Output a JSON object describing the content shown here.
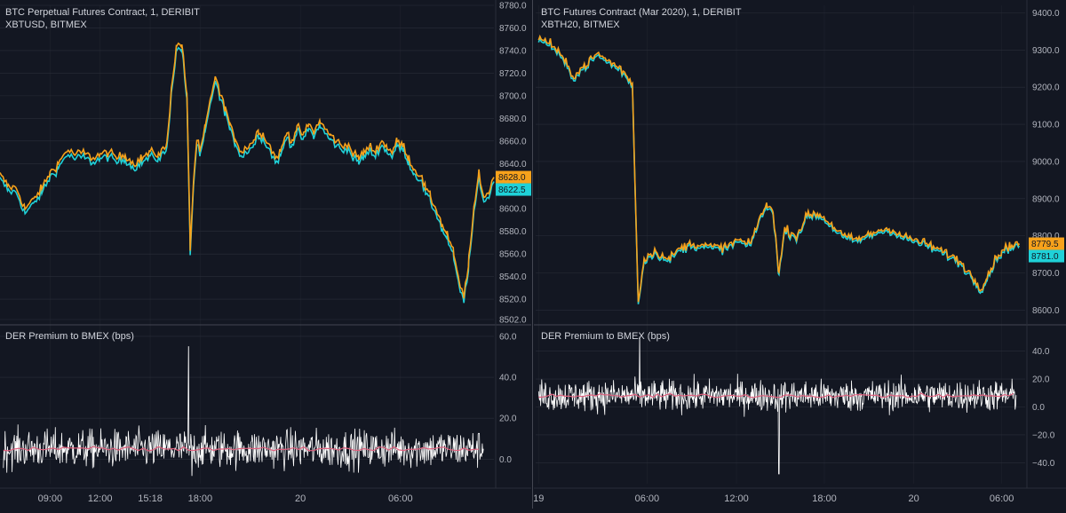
{
  "colors": {
    "background": "#131722",
    "grid": "#2a2e39",
    "der_line": "#f7a21b",
    "bmex_line": "#1fd1d8",
    "premium_line": "#ffffff",
    "premium_avg": "#e0607e"
  },
  "chart_data": [
    {
      "type": "line",
      "title": "BTC Perpetual Futures Contract, 1, DERIBIT",
      "subtitle": "XBTUSD, BITMEX",
      "ylim": [
        8502,
        8780
      ],
      "yticks": [
        "8780.0",
        "8760.0",
        "8740.0",
        "8720.0",
        "8700.0",
        "8680.0",
        "8660.0",
        "8640.0",
        "8620.0",
        "8600.0",
        "8580.0",
        "8560.0",
        "8540.0",
        "8520.0",
        "8502.0"
      ],
      "series": [
        {
          "name": "DERIBIT",
          "color": "#f7a21b",
          "last": "8628.0",
          "anchors": [
            [
              0,
              8630
            ],
            [
              0.5,
              8620
            ],
            [
              1,
              8618
            ],
            [
              1.5,
              8600
            ],
            [
              2,
              8608
            ],
            [
              2.5,
              8618
            ],
            [
              3,
              8632
            ],
            [
              3.5,
              8640
            ],
            [
              4,
              8652
            ],
            [
              4.5,
              8648
            ],
            [
              5,
              8650
            ],
            [
              5.5,
              8645
            ],
            [
              6,
              8648
            ],
            [
              6.5,
              8650
            ],
            [
              7,
              8645
            ],
            [
              7.5,
              8648
            ],
            [
              8,
              8640
            ],
            [
              8.5,
              8645
            ],
            [
              9,
              8650
            ],
            [
              9.5,
              8648
            ],
            [
              10,
              8656
            ],
            [
              10.3,
              8712
            ],
            [
              10.6,
              8745
            ],
            [
              10.9,
              8746
            ],
            [
              11.2,
              8700
            ],
            [
              11.4,
              8565
            ],
            [
              11.6,
              8625
            ],
            [
              11.8,
              8662
            ],
            [
              12,
              8650
            ],
            [
              12.3,
              8672
            ],
            [
              12.6,
              8695
            ],
            [
              12.9,
              8718
            ],
            [
              13.2,
              8700
            ],
            [
              13.5,
              8690
            ],
            [
              13.8,
              8672
            ],
            [
              14.1,
              8662
            ],
            [
              14.5,
              8650
            ],
            [
              14.8,
              8655
            ],
            [
              15.2,
              8660
            ],
            [
              15.5,
              8670
            ],
            [
              15.8,
              8665
            ],
            [
              16.2,
              8655
            ],
            [
              16.5,
              8645
            ],
            [
              16.8,
              8650
            ],
            [
              17.2,
              8668
            ],
            [
              17.5,
              8660
            ],
            [
              17.8,
              8672
            ],
            [
              18.2,
              8665
            ],
            [
              18.5,
              8675
            ],
            [
              18.8,
              8668
            ],
            [
              19.2,
              8678
            ],
            [
              19.5,
              8670
            ],
            [
              19.8,
              8665
            ],
            [
              20.2,
              8660
            ],
            [
              20.5,
              8655
            ],
            [
              20.8,
              8658
            ],
            [
              21.2,
              8648
            ],
            [
              21.5,
              8645
            ],
            [
              21.8,
              8650
            ],
            [
              22.2,
              8655
            ],
            [
              22.5,
              8650
            ],
            [
              22.8,
              8660
            ],
            [
              23.2,
              8655
            ],
            [
              23.5,
              8650
            ],
            [
              23.8,
              8660
            ],
            [
              24.2,
              8655
            ],
            [
              24.5,
              8645
            ],
            [
              24.8,
              8635
            ],
            [
              25.2,
              8630
            ],
            [
              25.5,
              8618
            ],
            [
              25.8,
              8610
            ],
            [
              26.2,
              8598
            ],
            [
              26.5,
              8585
            ],
            [
              26.8,
              8578
            ],
            [
              27.2,
              8560
            ],
            [
              27.5,
              8535
            ],
            [
              27.8,
              8522
            ],
            [
              28.1,
              8555
            ],
            [
              28.4,
              8598
            ],
            [
              28.7,
              8632
            ],
            [
              29,
              8610
            ],
            [
              29.3,
              8615
            ],
            [
              29.6,
              8628
            ]
          ]
        },
        {
          "name": "BITMEX",
          "color": "#1fd1d8",
          "last": "8622.5",
          "offset": -4
        }
      ],
      "x_ticks": [
        {
          "t": 3,
          "label": "09:00"
        },
        {
          "t": 6,
          "label": "12:00"
        },
        {
          "t": 9,
          "label": "15:18"
        },
        {
          "t": 12,
          "label": "18:00"
        },
        {
          "t": 18,
          "label": "20"
        },
        {
          "t": 24,
          "label": "06:00"
        }
      ],
      "x_range": [
        0,
        29.6
      ],
      "indicator": {
        "label": "DER Premium to BMEX (bps)",
        "ylim": [
          -12,
          63
        ],
        "yticks": [
          "60.0",
          "40.0",
          "20.0",
          "0.0"
        ],
        "ytick_values": [
          60,
          40,
          20,
          0
        ],
        "baseline": 5,
        "noise": 5,
        "spikes": [
          {
            "t": 11.3,
            "y": 55
          },
          {
            "t": 11.5,
            "y": -8
          }
        ]
      }
    },
    {
      "type": "line",
      "title": "BTC Futures Contract (Mar 2020), 1, DERIBIT",
      "subtitle": "XBTH20, BITMEX",
      "ylim": [
        8575,
        9420
      ],
      "yticks": [
        "9400.0",
        "9300.0",
        "9200.0",
        "9100.0",
        "9000.0",
        "8900.0",
        "8800.0",
        "8700.0",
        "8600.0"
      ],
      "ytick_values": [
        9400,
        9300,
        9200,
        9100,
        9000,
        8900,
        8800,
        8700,
        8600
      ],
      "series": [
        {
          "name": "DERIBIT",
          "color": "#f7a21b",
          "last": "8779.5",
          "anchors": [
            [
              0,
              9330
            ],
            [
              0.8,
              9320
            ],
            [
              1.6,
              9280
            ],
            [
              2.4,
              9230
            ],
            [
              3.2,
              9260
            ],
            [
              4,
              9290
            ],
            [
              4.8,
              9270
            ],
            [
              5.6,
              9250
            ],
            [
              6.4,
              9210
            ],
            [
              6.8,
              8620
            ],
            [
              7.2,
              8740
            ],
            [
              8,
              8760
            ],
            [
              8.8,
              8735
            ],
            [
              9.6,
              8765
            ],
            [
              10.4,
              8780
            ],
            [
              11.2,
              8775
            ],
            [
              12,
              8770
            ],
            [
              12.8,
              8770
            ],
            [
              13.6,
              8790
            ],
            [
              14.4,
              8775
            ],
            [
              15.2,
              8860
            ],
            [
              15.6,
              8880
            ],
            [
              16,
              8870
            ],
            [
              16.4,
              8700
            ],
            [
              16.8,
              8820
            ],
            [
              17.6,
              8800
            ],
            [
              18.4,
              8860
            ],
            [
              19.2,
              8858
            ],
            [
              20,
              8830
            ],
            [
              20.8,
              8800
            ],
            [
              21.6,
              8790
            ],
            [
              22.4,
              8800
            ],
            [
              23.2,
              8815
            ],
            [
              24,
              8820
            ],
            [
              24.8,
              8800
            ],
            [
              25.6,
              8790
            ],
            [
              26.4,
              8780
            ],
            [
              27.2,
              8765
            ],
            [
              28,
              8750
            ],
            [
              28.8,
              8730
            ],
            [
              29.6,
              8690
            ],
            [
              30.2,
              8660
            ],
            [
              30.6,
              8690
            ],
            [
              31.2,
              8740
            ],
            [
              31.6,
              8760
            ],
            [
              32.2,
              8775
            ],
            [
              32.8,
              8779
            ]
          ]
        },
        {
          "name": "BITMEX",
          "color": "#1fd1d8",
          "last": "8781.0",
          "offset": -6
        }
      ],
      "x_ticks": [
        {
          "t": 0,
          "label": "19"
        },
        {
          "t": 7.4,
          "label": "06:00"
        },
        {
          "t": 13.5,
          "label": "12:00"
        },
        {
          "t": 19.5,
          "label": "18:00"
        },
        {
          "t": 25.6,
          "label": "20"
        },
        {
          "t": 31.6,
          "label": "06:00"
        }
      ],
      "x_range": [
        -0.2,
        33.2
      ],
      "indicator": {
        "label": "DER Premium to BMEX (bps)",
        "ylim": [
          -55,
          55
        ],
        "yticks": [
          "40.0",
          "20.0",
          "0.0",
          "−20.0",
          "−40.0"
        ],
        "ytick_values": [
          40,
          20,
          0,
          -20,
          -40
        ],
        "baseline": 8,
        "noise": 6,
        "spikes": [
          {
            "t": 6.9,
            "y": 50
          },
          {
            "t": 16.4,
            "y": -48
          }
        ]
      }
    }
  ]
}
